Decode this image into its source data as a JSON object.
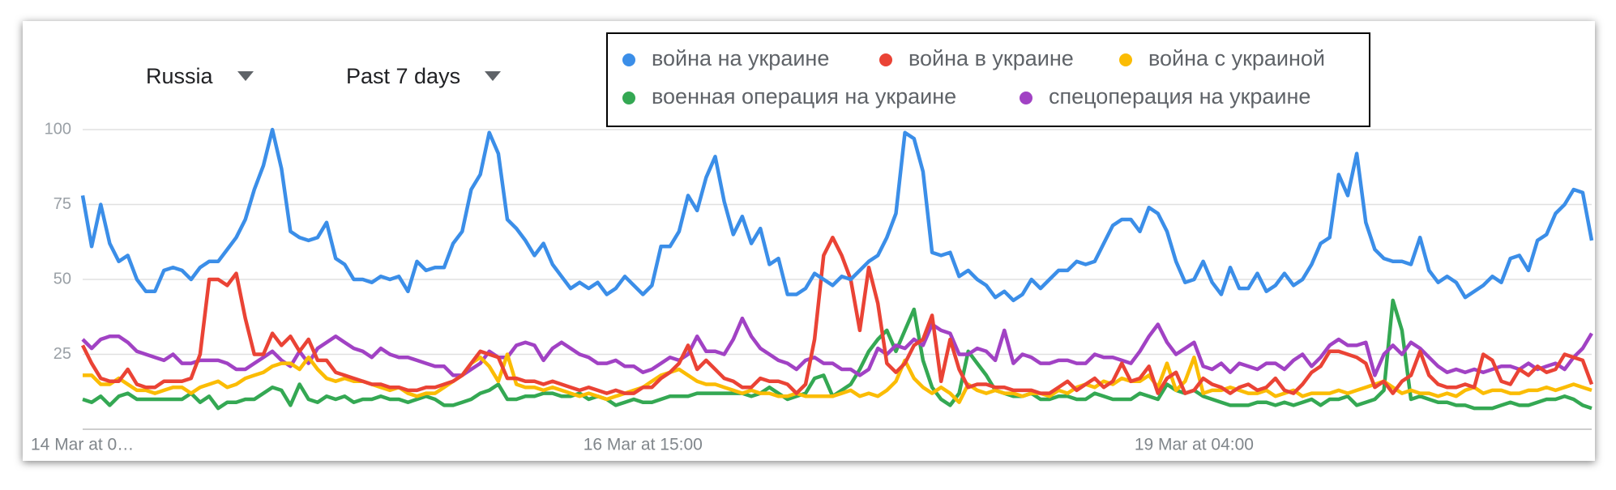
{
  "controls": {
    "region": "Russia",
    "period": "Past 7 days"
  },
  "chart_data": {
    "type": "line",
    "categories": [
      "14 Mar at 0…",
      null,
      null,
      null,
      null,
      null,
      null,
      null,
      null,
      null,
      null,
      null,
      null,
      null,
      null,
      null,
      null,
      null,
      null,
      null,
      null,
      null,
      null,
      null,
      null,
      null,
      null,
      null,
      null,
      null,
      null,
      null,
      null,
      null,
      null,
      null,
      null,
      null,
      null,
      null,
      null,
      null,
      null,
      null,
      null,
      null,
      null,
      null,
      null,
      null,
      null,
      null,
      null,
      null,
      null,
      null,
      null,
      null,
      null,
      null,
      null,
      null,
      "16 Mar at 15:00",
      null,
      null,
      null,
      null,
      null,
      null,
      null,
      null,
      null,
      null,
      null,
      null,
      null,
      null,
      null,
      null,
      null,
      null,
      null,
      null,
      null,
      null,
      null,
      null,
      null,
      null,
      null,
      null,
      null,
      null,
      null,
      null,
      null,
      null,
      null,
      null,
      null,
      null,
      null,
      null,
      null,
      null,
      null,
      null,
      null,
      null,
      null,
      null,
      null,
      null,
      null,
      null,
      null,
      null,
      null,
      null,
      null,
      null,
      null,
      null,
      "19 Mar at 04:00",
      null,
      null,
      null,
      null,
      null,
      null,
      null,
      null,
      null,
      null,
      null,
      null,
      null,
      null,
      null,
      null,
      null,
      null,
      null,
      null,
      null,
      null,
      null,
      null,
      null,
      null,
      null,
      null,
      null,
      null,
      null,
      null,
      null,
      null,
      null,
      null,
      null,
      null,
      null,
      null,
      null,
      null,
      null,
      null
    ],
    "series": [
      {
        "name": "война на украине",
        "color": "#3b8ee8",
        "values": [
          78,
          61,
          75,
          62,
          56,
          58,
          50,
          46,
          46,
          53,
          54,
          53,
          50,
          54,
          56,
          56,
          60,
          64,
          70,
          80,
          88,
          100,
          87,
          66,
          64,
          63,
          64,
          69,
          57,
          55,
          50,
          50,
          49,
          51,
          50,
          51,
          46,
          56,
          53,
          54,
          54,
          62,
          66,
          80,
          85,
          99,
          92,
          70,
          67,
          63,
          58,
          62,
          55,
          51,
          47,
          49,
          47,
          49,
          45,
          47,
          51,
          48,
          45,
          48,
          61,
          61,
          66,
          78,
          73,
          84,
          91,
          76,
          65,
          71,
          62,
          67,
          55,
          57,
          45,
          45,
          47,
          52,
          50,
          48,
          51,
          50,
          53,
          56,
          58,
          64,
          72,
          99,
          97,
          86,
          59,
          58,
          59,
          51,
          53,
          50,
          48,
          44,
          46,
          43,
          45,
          50,
          47,
          50,
          53,
          53,
          56,
          55,
          56,
          62,
          68,
          70,
          70,
          66,
          74,
          72,
          66,
          56,
          49,
          50,
          56,
          49,
          45,
          54,
          47,
          47,
          52,
          46,
          48,
          52,
          48,
          50,
          55,
          62,
          64,
          85,
          78,
          92,
          69,
          60,
          57,
          56,
          56,
          55,
          64,
          53,
          49,
          51,
          49,
          44,
          46,
          48,
          51,
          49,
          57,
          58,
          53,
          63,
          65,
          72,
          75,
          80,
          79,
          63
        ]
      },
      {
        "name": "война в украине",
        "color": "#ea4335",
        "values": [
          28,
          22,
          17,
          16,
          16,
          20,
          15,
          14,
          14,
          16,
          16,
          16,
          17,
          25,
          50,
          50,
          48,
          52,
          37,
          25,
          25,
          32,
          28,
          31,
          26,
          30,
          23,
          23,
          19,
          18,
          17,
          16,
          15,
          15,
          14,
          14,
          13,
          13,
          14,
          14,
          15,
          16,
          18,
          22,
          26,
          25,
          24,
          17,
          17,
          16,
          16,
          15,
          16,
          15,
          14,
          13,
          14,
          13,
          12,
          13,
          12,
          12,
          14,
          14,
          17,
          19,
          22,
          28,
          20,
          23,
          20,
          17,
          16,
          14,
          14,
          17,
          16,
          16,
          15,
          12,
          15,
          30,
          58,
          64,
          58,
          50,
          33,
          54,
          42,
          22,
          19,
          22,
          28,
          30,
          38,
          16,
          30,
          20,
          14,
          15,
          15,
          14,
          14,
          13,
          13,
          13,
          12,
          12,
          14,
          16,
          13,
          15,
          17,
          14,
          16,
          22,
          16,
          17,
          21,
          12,
          17,
          19,
          12,
          13,
          17,
          15,
          14,
          12,
          14,
          15,
          13,
          14,
          17,
          13,
          12,
          15,
          19,
          21,
          26,
          26,
          25,
          24,
          22,
          14,
          16,
          12,
          16,
          18,
          26,
          18,
          15,
          14,
          14,
          15,
          14,
          25,
          23,
          16,
          15,
          20,
          18,
          21,
          19,
          20,
          25,
          24,
          23,
          15
        ]
      },
      {
        "name": "война с украиной",
        "color": "#fbbc04",
        "values": [
          18,
          18,
          15,
          15,
          17,
          15,
          13,
          13,
          12,
          13,
          14,
          14,
          12,
          14,
          15,
          16,
          14,
          15,
          17,
          18,
          19,
          21,
          22,
          22,
          20,
          24,
          20,
          17,
          16,
          17,
          16,
          16,
          15,
          14,
          13,
          14,
          12,
          11,
          12,
          12,
          14,
          16,
          18,
          22,
          24,
          21,
          16,
          25,
          15,
          14,
          14,
          13,
          14,
          13,
          12,
          11,
          12,
          11,
          10,
          11,
          12,
          13,
          14,
          16,
          18,
          19,
          20,
          18,
          16,
          15,
          15,
          14,
          13,
          12,
          13,
          12,
          12,
          11,
          11,
          12,
          11,
          11,
          11,
          11,
          12,
          13,
          11,
          12,
          11,
          13,
          16,
          23,
          17,
          14,
          12,
          14,
          12,
          9,
          15,
          13,
          12,
          13,
          12,
          12,
          11,
          12,
          12,
          11,
          13,
          12,
          14,
          15,
          14,
          16,
          15,
          17,
          16,
          16,
          18,
          14,
          22,
          13,
          16,
          24,
          12,
          13,
          13,
          14,
          13,
          12,
          12,
          13,
          11,
          12,
          13,
          11,
          12,
          12,
          12,
          13,
          12,
          13,
          14,
          15,
          16,
          14,
          12,
          13,
          12,
          12,
          11,
          12,
          11,
          13,
          14,
          12,
          13,
          13,
          12,
          12,
          13,
          13,
          14,
          13,
          14,
          15,
          14,
          13
        ]
      },
      {
        "name": "военная операция на украине",
        "color": "#34a853",
        "values": [
          10,
          9,
          11,
          8,
          11,
          12,
          10,
          10,
          10,
          10,
          10,
          10,
          12,
          9,
          11,
          7,
          9,
          9,
          10,
          10,
          12,
          14,
          13,
          8,
          15,
          10,
          9,
          11,
          10,
          11,
          9,
          10,
          10,
          11,
          10,
          10,
          9,
          10,
          11,
          10,
          8,
          8,
          9,
          10,
          12,
          13,
          15,
          10,
          10,
          11,
          11,
          12,
          12,
          11,
          11,
          12,
          10,
          11,
          10,
          8,
          9,
          10,
          9,
          9,
          10,
          11,
          11,
          11,
          12,
          12,
          12,
          12,
          12,
          12,
          11,
          12,
          14,
          12,
          10,
          11,
          12,
          17,
          18,
          11,
          13,
          15,
          20,
          26,
          30,
          33,
          26,
          33,
          40,
          23,
          14,
          10,
          8,
          12,
          26,
          22,
          18,
          13,
          12,
          11,
          11,
          12,
          10,
          10,
          11,
          11,
          10,
          10,
          12,
          11,
          10,
          10,
          10,
          12,
          11,
          10,
          15,
          13,
          12,
          13,
          11,
          10,
          9,
          8,
          8,
          8,
          9,
          9,
          8,
          9,
          8,
          9,
          10,
          8,
          10,
          10,
          11,
          8,
          9,
          10,
          13,
          43,
          33,
          10,
          11,
          10,
          9,
          9,
          8,
          8,
          7,
          7,
          7,
          8,
          9,
          8,
          8,
          9,
          10,
          10,
          11,
          10,
          8,
          7
        ]
      },
      {
        "name": "спецоперация на украине",
        "color": "#a142c4",
        "values": [
          30,
          27,
          30,
          31,
          31,
          29,
          26,
          25,
          24,
          23,
          25,
          22,
          22,
          23,
          23,
          23,
          22,
          20,
          20,
          22,
          24,
          26,
          23,
          21,
          26,
          22,
          27,
          29,
          31,
          29,
          27,
          26,
          24,
          27,
          25,
          24,
          24,
          23,
          22,
          21,
          21,
          18,
          18,
          20,
          22,
          26,
          24,
          24,
          28,
          29,
          28,
          23,
          27,
          29,
          27,
          25,
          24,
          22,
          22,
          23,
          21,
          21,
          19,
          20,
          22,
          24,
          23,
          25,
          31,
          26,
          26,
          25,
          30,
          37,
          31,
          27,
          25,
          23,
          22,
          20,
          23,
          24,
          22,
          22,
          20,
          20,
          18,
          20,
          27,
          25,
          28,
          27,
          30,
          28,
          35,
          33,
          32,
          25,
          25,
          27,
          26,
          23,
          33,
          22,
          25,
          24,
          22,
          22,
          23,
          23,
          22,
          22,
          25,
          24,
          24,
          23,
          22,
          26,
          31,
          35,
          29,
          25,
          27,
          29,
          21,
          20,
          22,
          19,
          22,
          21,
          20,
          22,
          22,
          20,
          23,
          25,
          21,
          24,
          28,
          30,
          28,
          28,
          29,
          18,
          25,
          28,
          25,
          29,
          27,
          24,
          21,
          19,
          20,
          19,
          20,
          19,
          20,
          21,
          21,
          20,
          22,
          20,
          21,
          22,
          20,
          24,
          27,
          32
        ]
      }
    ],
    "ylim": [
      0,
      100
    ],
    "yticks": [
      25,
      50,
      75,
      100
    ],
    "grid": true
  }
}
